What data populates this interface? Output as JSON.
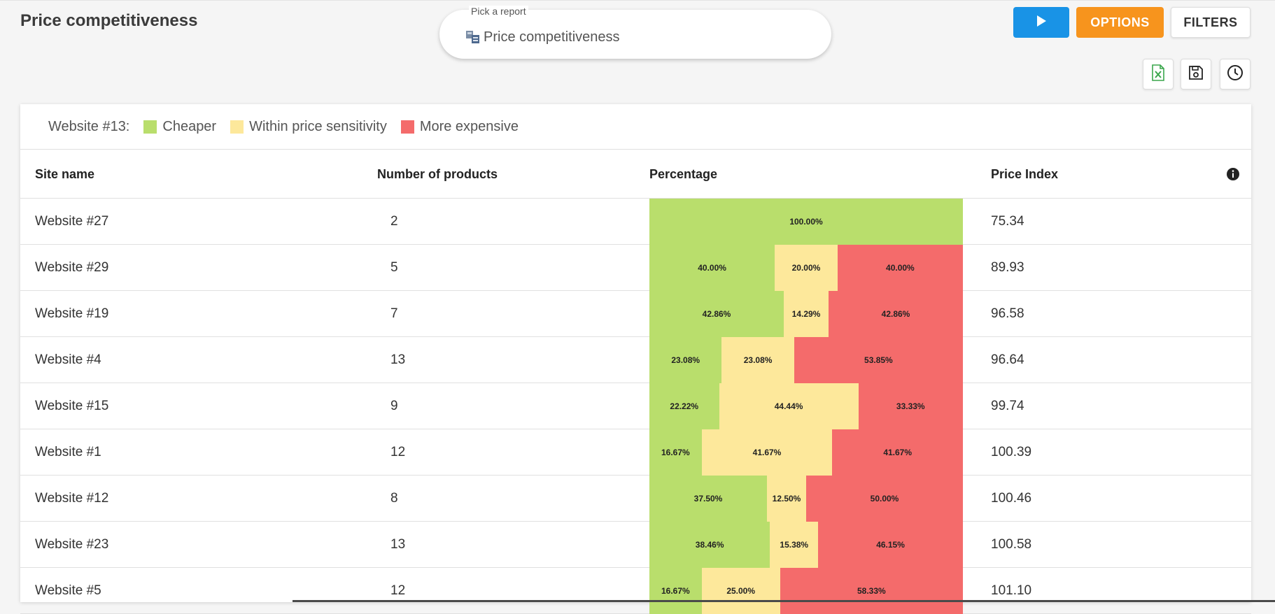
{
  "title": "Price competitiveness",
  "report_picker": {
    "label": "Pick a report",
    "value": "Price competitiveness"
  },
  "buttons": {
    "options": "OPTIONS",
    "filters": "FILTERS"
  },
  "icons": {
    "run": "play-icon",
    "excel": "excel-export-icon",
    "save": "save-icon",
    "history": "clock-icon",
    "info": "info-icon"
  },
  "colors": {
    "cheaper": "#b9de6c",
    "within": "#fde89b",
    "expensive": "#f46b6b",
    "run_button": "#1993e6",
    "options_button": "#f7941d"
  },
  "legend": {
    "title": "Website #13:",
    "items": [
      {
        "label": "Cheaper",
        "color": "#b9de6c"
      },
      {
        "label": "Within price sensitivity",
        "color": "#fde89b"
      },
      {
        "label": "More expensive",
        "color": "#f46b6b"
      }
    ]
  },
  "table": {
    "headers": {
      "site": "Site name",
      "count": "Number of products",
      "percentage": "Percentage",
      "index": "Price Index"
    },
    "rows": [
      {
        "site": "Website #27",
        "count": "2",
        "cheaper": 100.0,
        "within": 0,
        "expensive": 0,
        "cheaper_label": "100.00%",
        "within_label": "",
        "expensive_label": "",
        "index": "75.34"
      },
      {
        "site": "Website #29",
        "count": "5",
        "cheaper": 40.0,
        "within": 20.0,
        "expensive": 40.0,
        "cheaper_label": "40.00%",
        "within_label": "20.00%",
        "expensive_label": "40.00%",
        "index": "89.93"
      },
      {
        "site": "Website #19",
        "count": "7",
        "cheaper": 42.86,
        "within": 14.29,
        "expensive": 42.86,
        "cheaper_label": "42.86%",
        "within_label": "14.29%",
        "expensive_label": "42.86%",
        "index": "96.58"
      },
      {
        "site": "Website #4",
        "count": "13",
        "cheaper": 23.08,
        "within": 23.08,
        "expensive": 53.85,
        "cheaper_label": "23.08%",
        "within_label": "23.08%",
        "expensive_label": "53.85%",
        "index": "96.64"
      },
      {
        "site": "Website #15",
        "count": "9",
        "cheaper": 22.22,
        "within": 44.44,
        "expensive": 33.33,
        "cheaper_label": "22.22%",
        "within_label": "44.44%",
        "expensive_label": "33.33%",
        "index": "99.74"
      },
      {
        "site": "Website #1",
        "count": "12",
        "cheaper": 16.67,
        "within": 41.67,
        "expensive": 41.67,
        "cheaper_label": "16.67%",
        "within_label": "41.67%",
        "expensive_label": "41.67%",
        "index": "100.39"
      },
      {
        "site": "Website #12",
        "count": "8",
        "cheaper": 37.5,
        "within": 12.5,
        "expensive": 50.0,
        "cheaper_label": "37.50%",
        "within_label": "12.50%",
        "expensive_label": "50.00%",
        "index": "100.46"
      },
      {
        "site": "Website #23",
        "count": "13",
        "cheaper": 38.46,
        "within": 15.38,
        "expensive": 46.15,
        "cheaper_label": "38.46%",
        "within_label": "15.38%",
        "expensive_label": "46.15%",
        "index": "100.58"
      },
      {
        "site": "Website #5",
        "count": "12",
        "cheaper": 16.67,
        "within": 25.0,
        "expensive": 58.33,
        "cheaper_label": "16.67%",
        "within_label": "25.00%",
        "expensive_label": "58.33%",
        "index": "101.10"
      }
    ]
  }
}
